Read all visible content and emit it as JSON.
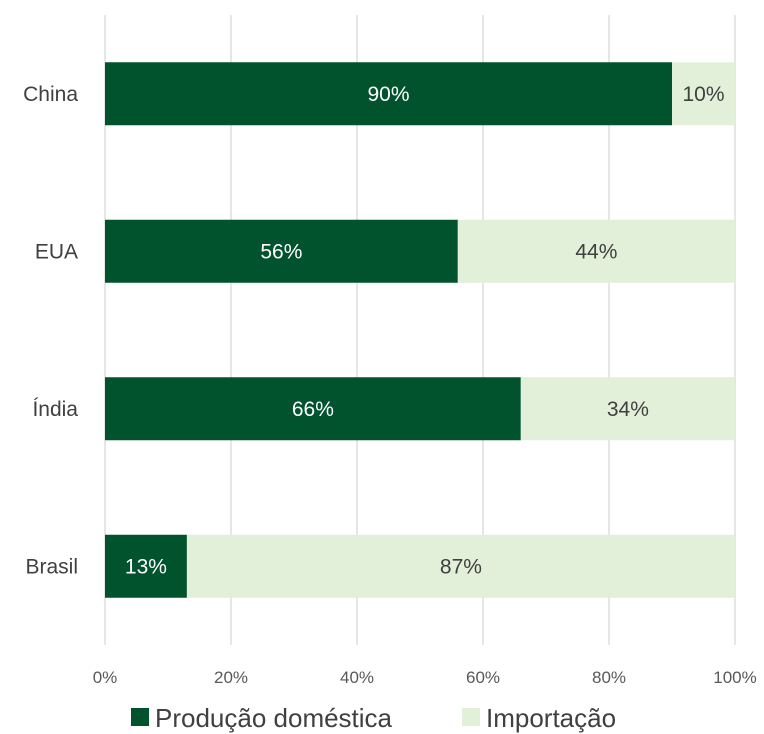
{
  "chart_data": {
    "type": "bar",
    "orientation": "horizontal",
    "stacked": true,
    "categories": [
      "China",
      "EUA",
      "Índia",
      "Brasil"
    ],
    "series": [
      {
        "name": "Produção doméstica",
        "values": [
          90,
          56,
          66,
          13
        ],
        "labels": [
          "90%",
          "56%",
          "66%",
          "13%"
        ],
        "color": "#00532c",
        "label_color": "#ffffff"
      },
      {
        "name": "Importação",
        "values": [
          10,
          44,
          34,
          87
        ],
        "labels": [
          "10%",
          "44%",
          "34%",
          "87%"
        ],
        "color": "#e2efd9",
        "label_color": "#404040"
      }
    ],
    "xlim": [
      0,
      100
    ],
    "xticks": [
      0,
      20,
      40,
      60,
      80,
      100
    ],
    "xtick_labels": [
      "0%",
      "20%",
      "40%",
      "60%",
      "80%",
      "100%"
    ],
    "grid": "vertical",
    "legend": "bottom",
    "title": "",
    "xlabel": "",
    "ylabel": ""
  }
}
